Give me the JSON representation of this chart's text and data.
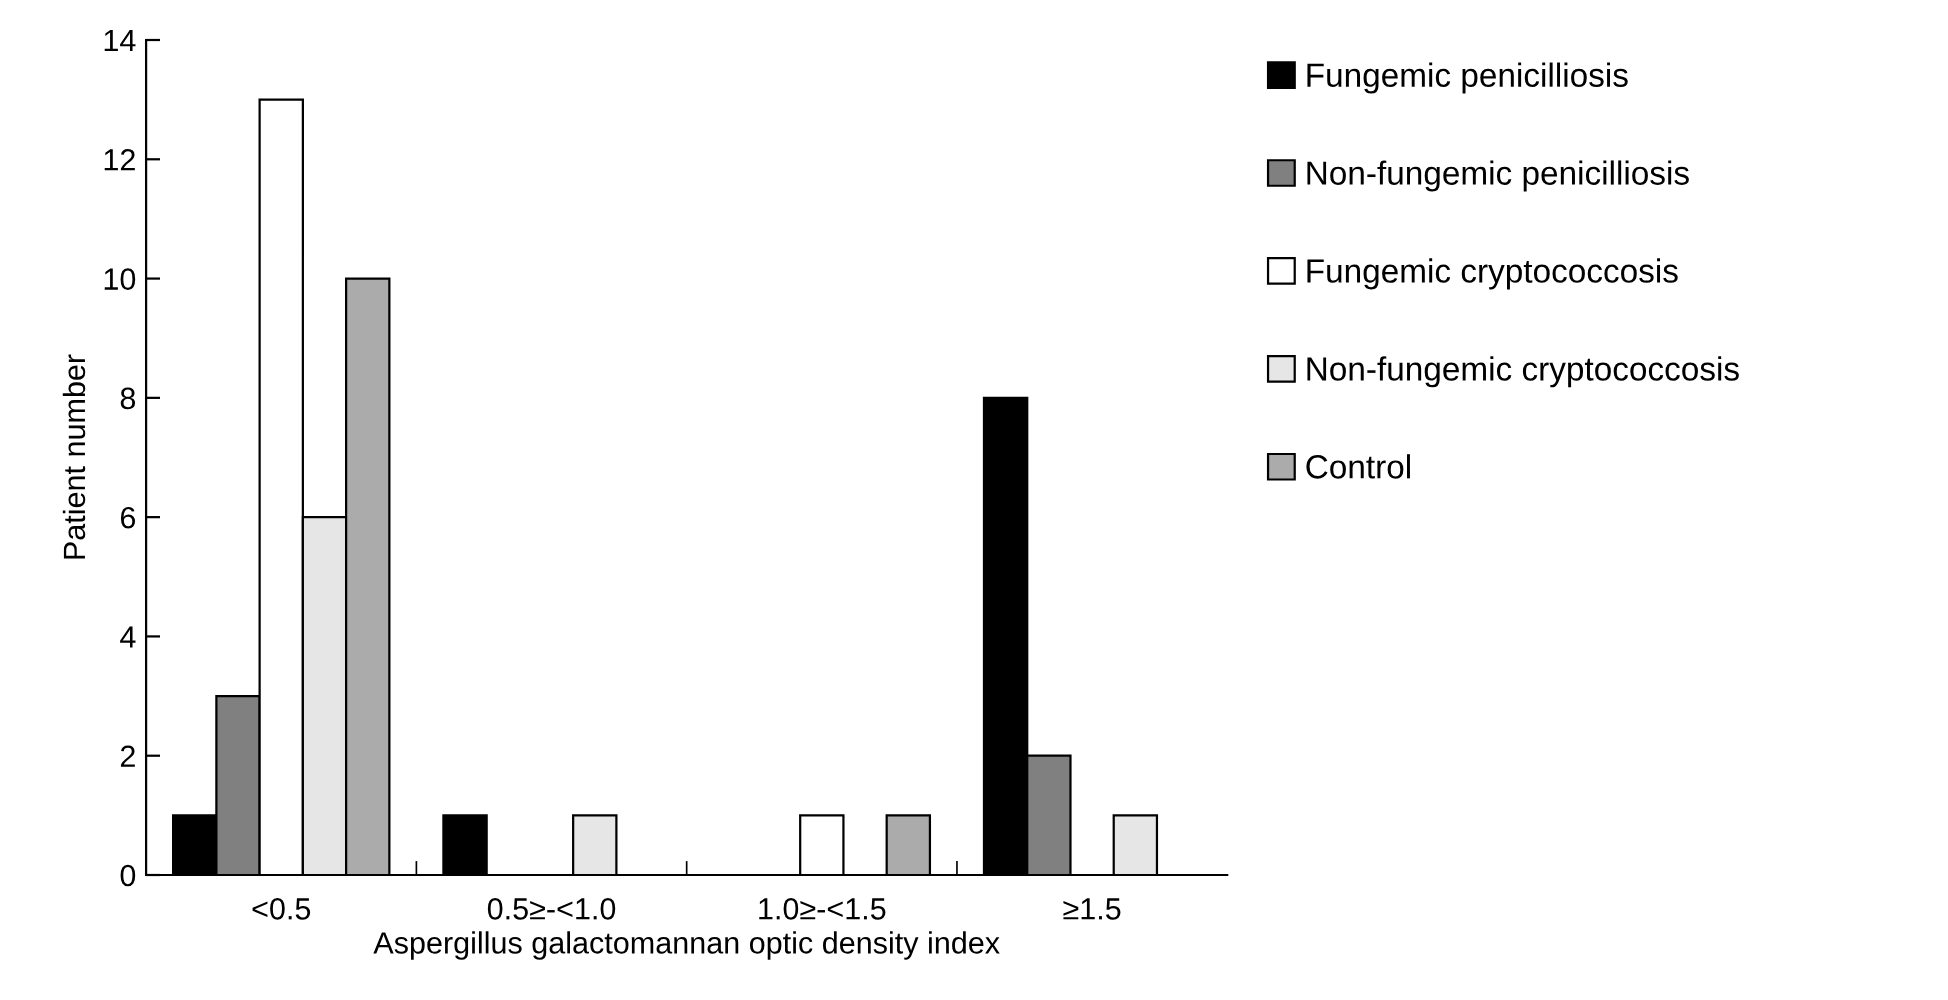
{
  "chart_data": {
    "type": "bar",
    "xlabel": "Aspergillus galactomannan optic density index",
    "ylabel": "Patient number",
    "categories": [
      "<0.5",
      "0.5≥-<1.0",
      "1.0≥-<1.5",
      "≥1.5"
    ],
    "series": [
      {
        "name": "Fungemic penicilliosis",
        "color": "#000000",
        "values": [
          1,
          1,
          0,
          8
        ]
      },
      {
        "name": "Non-fungemic penicilliosis",
        "color": "#808080",
        "values": [
          3,
          0,
          0,
          2
        ]
      },
      {
        "name": "Fungemic cryptococcosis",
        "color": "#ffffff",
        "values": [
          13,
          0,
          1,
          0
        ]
      },
      {
        "name": "Non-fungemic cryptococcosis",
        "color": "#e6e6e6",
        "values": [
          6,
          1,
          0,
          1
        ]
      },
      {
        "name": "Control",
        "color": "#ababab",
        "values": [
          10,
          0,
          1,
          0
        ]
      }
    ],
    "ylim": [
      0,
      14
    ],
    "yticks": [
      0,
      2,
      4,
      6,
      8,
      10,
      12,
      14
    ],
    "grid": false,
    "legend": "right"
  }
}
